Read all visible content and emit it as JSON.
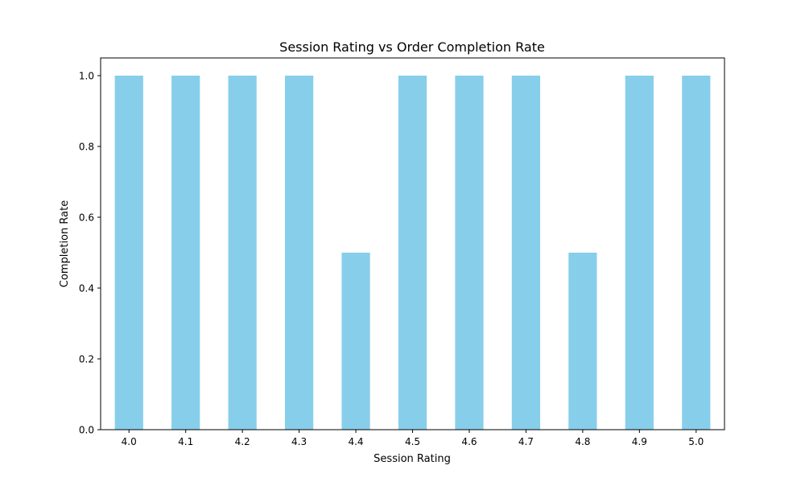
{
  "chart_data": {
    "type": "bar",
    "title": "Session Rating vs Order Completion Rate",
    "xlabel": "Session Rating",
    "ylabel": "Completion Rate",
    "categories": [
      "4.0",
      "4.1",
      "4.2",
      "4.3",
      "4.4",
      "4.5",
      "4.6",
      "4.7",
      "4.8",
      "4.9",
      "5.0"
    ],
    "values": [
      1.0,
      1.0,
      1.0,
      1.0,
      0.5,
      1.0,
      1.0,
      1.0,
      0.5,
      1.0,
      1.0
    ],
    "ylim": [
      0,
      1.05
    ],
    "yticks": [
      "0.0",
      "0.2",
      "0.4",
      "0.6",
      "0.8",
      "1.0"
    ],
    "bar_color": "#87CEEB",
    "grid": false,
    "legend": "none"
  }
}
